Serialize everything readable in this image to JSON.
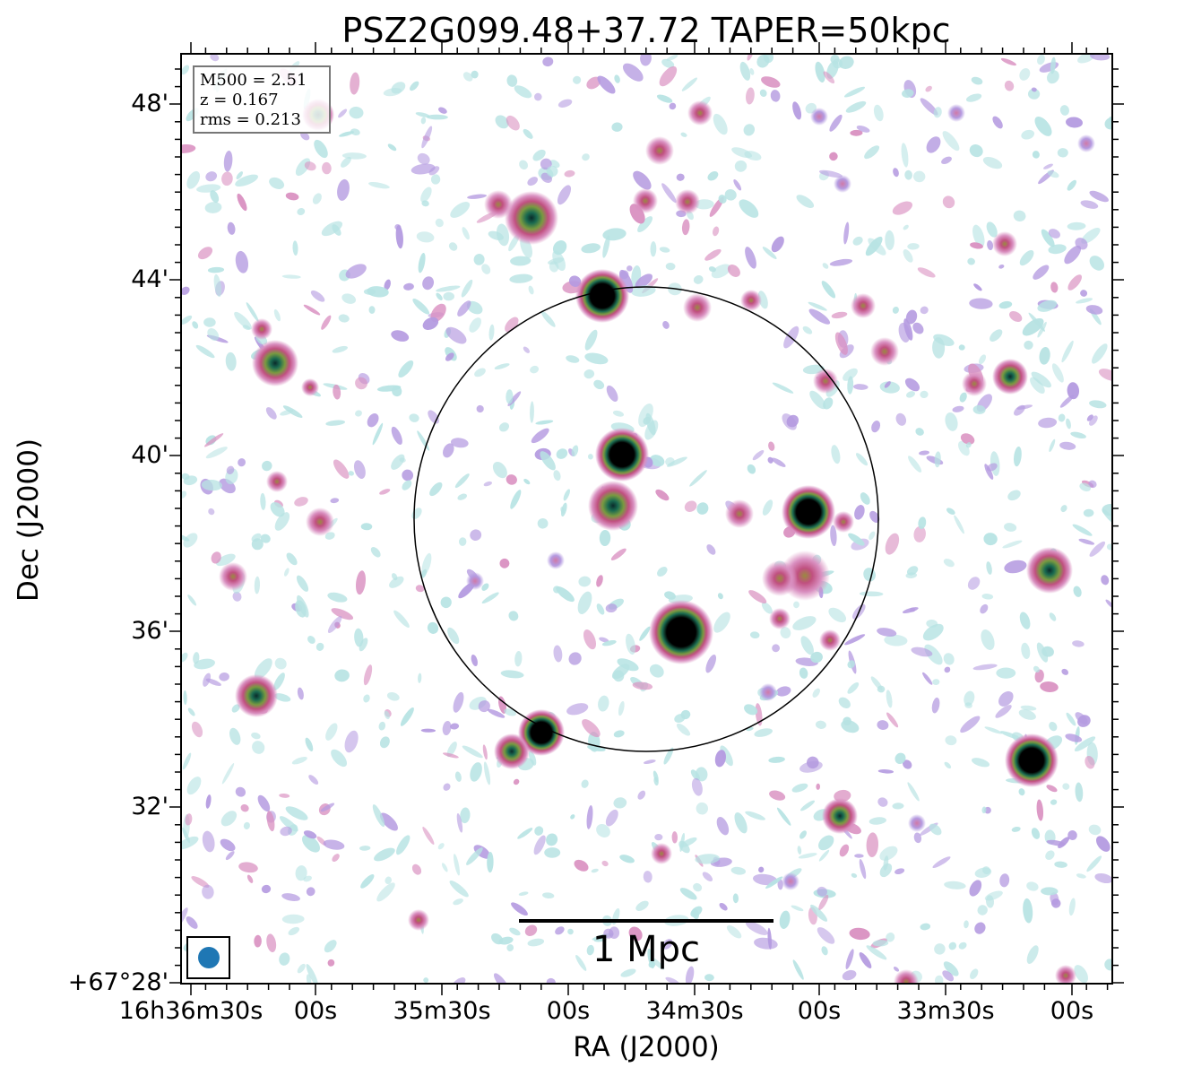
{
  "figure": {
    "title": "PSZ2G099.48+37.72 TAPER=50kpc",
    "xlabel": "RA (J2000)",
    "ylabel": "Dec (J2000)",
    "x_ticks": [
      "16h36m30s",
      "00s",
      "35m30s",
      "00s",
      "34m30s",
      "00s",
      "33m30s",
      "00s"
    ],
    "y_ticks": [
      "48'",
      "44'",
      "40'",
      "36'",
      "32'",
      "+67°28'"
    ],
    "info_box": {
      "lines": [
        "M500 = 2.51",
        "z = 0.167",
        "rms = 0.213"
      ]
    },
    "scale_bar": {
      "label": "1 Mpc"
    },
    "beam_color": "#1f77b4",
    "colormap": [
      "#b7e3e3",
      "#b49ae0",
      "#d98fc0",
      "#c05080",
      "#7a9a40",
      "#1a6a50",
      "#000000"
    ],
    "circle_color": "#000000"
  }
}
